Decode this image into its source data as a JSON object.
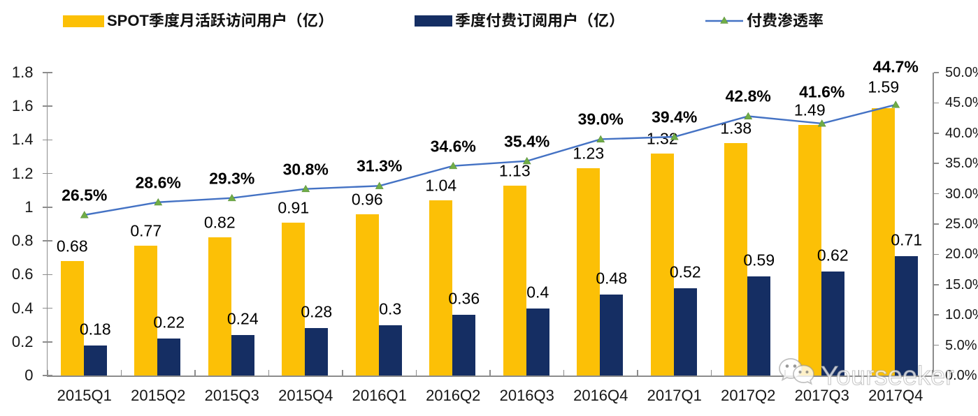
{
  "chart_data": {
    "type": "bar",
    "subtype": "grouped-bars-with-line-overlay",
    "categories": [
      "2015Q1",
      "2015Q2",
      "2015Q3",
      "2015Q4",
      "2016Q1",
      "2016Q2",
      "2016Q3",
      "2016Q4",
      "2017Q1",
      "2017Q2",
      "2017Q3",
      "2017Q4"
    ],
    "series": [
      {
        "name": "SPOT季度月活跃访问用户（亿）",
        "type": "bar",
        "color": "#FCC006",
        "values": [
          0.68,
          0.77,
          0.82,
          0.91,
          0.96,
          1.04,
          1.13,
          1.23,
          1.32,
          1.38,
          1.49,
          1.59
        ],
        "labels": [
          "0.68",
          "0.77",
          "0.82",
          "0.91",
          "0.96",
          "1.04",
          "1.13",
          "1.23",
          "1.32",
          "1.38",
          "1.49",
          "1.59"
        ],
        "axis": "left"
      },
      {
        "name": "季度付费订阅用户（亿）",
        "type": "bar",
        "color": "#152E63",
        "values": [
          0.18,
          0.22,
          0.24,
          0.28,
          0.3,
          0.36,
          0.4,
          0.48,
          0.52,
          0.59,
          0.62,
          0.71
        ],
        "labels": [
          "0.18",
          "0.22",
          "0.24",
          "0.28",
          "0.3",
          "0.36",
          "0.4",
          "0.48",
          "0.52",
          "0.59",
          "0.62",
          "0.71"
        ],
        "axis": "left"
      },
      {
        "name": "付费渗透率",
        "type": "line",
        "color": "#4472C4",
        "marker": "triangle",
        "marker_color": "#70AD47",
        "values": [
          26.5,
          28.6,
          29.3,
          30.8,
          31.3,
          34.6,
          35.4,
          39.0,
          39.4,
          42.8,
          41.6,
          44.7
        ],
        "labels": [
          "26.5%",
          "28.6%",
          "29.3%",
          "30.8%",
          "31.3%",
          "34.6%",
          "35.4%",
          "39.0%",
          "39.4%",
          "42.8%",
          "41.6%",
          "44.7%"
        ],
        "axis": "right"
      }
    ],
    "left_axis": {
      "min": 0,
      "max": 1.8,
      "step": 0.2,
      "tick_labels": [
        "0",
        "0.2",
        "0.4",
        "0.6",
        "0.8",
        "1",
        "1.2",
        "1.4",
        "1.6",
        "1.8"
      ]
    },
    "right_axis": {
      "min": 0,
      "max": 50,
      "step": 5,
      "tick_labels": [
        "0.0%",
        "5.0%",
        "10.0%",
        "15.0%",
        "20.0%",
        "25.0%",
        "30.0%",
        "35.0%",
        "40.0%",
        "45.0%",
        "50.0%"
      ]
    },
    "grid": false,
    "legend_position": "top",
    "axis_color": "#8c8c8c",
    "text_color": "#000000"
  },
  "watermark": {
    "text": "Yourseeker",
    "icon": "wechat-icon"
  }
}
